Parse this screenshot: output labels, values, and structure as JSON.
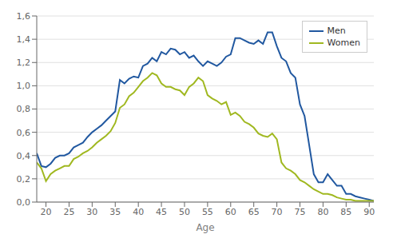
{
  "chart_data": {
    "type": "line",
    "xlabel": "Age",
    "x": [
      18,
      19,
      20,
      21,
      22,
      23,
      24,
      25,
      26,
      27,
      28,
      29,
      30,
      31,
      32,
      33,
      34,
      35,
      36,
      37,
      38,
      39,
      40,
      41,
      42,
      43,
      44,
      45,
      46,
      47,
      48,
      49,
      50,
      51,
      52,
      53,
      54,
      55,
      56,
      57,
      58,
      59,
      60,
      61,
      62,
      63,
      64,
      65,
      66,
      67,
      68,
      69,
      70,
      71,
      72,
      73,
      74,
      75,
      76,
      77,
      78,
      79,
      80,
      81,
      82,
      83,
      84,
      85,
      86,
      87,
      88,
      89,
      90,
      91
    ],
    "series": [
      {
        "name": "Men",
        "color": "#2158a0",
        "values": [
          0.42,
          0.31,
          0.3,
          0.33,
          0.38,
          0.4,
          0.4,
          0.42,
          0.47,
          0.49,
          0.51,
          0.56,
          0.6,
          0.63,
          0.66,
          0.7,
          0.74,
          0.78,
          1.05,
          1.02,
          1.06,
          1.08,
          1.07,
          1.17,
          1.19,
          1.24,
          1.21,
          1.29,
          1.27,
          1.32,
          1.31,
          1.27,
          1.29,
          1.24,
          1.26,
          1.21,
          1.17,
          1.21,
          1.19,
          1.17,
          1.2,
          1.25,
          1.27,
          1.41,
          1.41,
          1.39,
          1.37,
          1.36,
          1.39,
          1.36,
          1.46,
          1.46,
          1.34,
          1.24,
          1.21,
          1.11,
          1.07,
          0.84,
          0.74,
          0.49,
          0.24,
          0.17,
          0.17,
          0.24,
          0.19,
          0.14,
          0.14,
          0.07,
          0.07,
          0.05,
          0.04,
          0.03,
          0.02,
          0.01
        ]
      },
      {
        "name": "Women",
        "color": "#a0b820",
        "values": [
          0.34,
          0.29,
          0.18,
          0.24,
          0.27,
          0.29,
          0.31,
          0.31,
          0.37,
          0.39,
          0.42,
          0.44,
          0.47,
          0.51,
          0.54,
          0.57,
          0.61,
          0.68,
          0.81,
          0.84,
          0.91,
          0.94,
          0.99,
          1.04,
          1.07,
          1.11,
          1.09,
          1.02,
          0.99,
          0.99,
          0.97,
          0.96,
          0.92,
          0.99,
          1.02,
          1.07,
          1.04,
          0.92,
          0.89,
          0.87,
          0.84,
          0.86,
          0.75,
          0.77,
          0.74,
          0.69,
          0.67,
          0.64,
          0.59,
          0.57,
          0.56,
          0.59,
          0.54,
          0.34,
          0.29,
          0.27,
          0.24,
          0.19,
          0.17,
          0.14,
          0.11,
          0.09,
          0.07,
          0.07,
          0.06,
          0.04,
          0.03,
          0.02,
          0.02,
          0.01,
          0.01,
          0.01,
          0.01,
          0.01
        ]
      }
    ],
    "xlim": [
      18,
      91
    ],
    "ylim": [
      0.0,
      1.6
    ],
    "xticks": [
      20,
      25,
      30,
      35,
      40,
      45,
      50,
      55,
      60,
      65,
      70,
      75,
      80,
      85,
      90
    ],
    "yticks": [
      {
        "value": 0.0,
        "label": "0,0"
      },
      {
        "value": 0.2,
        "label": "0,2"
      },
      {
        "value": 0.4,
        "label": "0,4"
      },
      {
        "value": 0.6,
        "label": "0,6"
      },
      {
        "value": 0.8,
        "label": "0,8"
      },
      {
        "value": 1.0,
        "label": "1,0"
      },
      {
        "value": 1.2,
        "label": "1,2"
      },
      {
        "value": 1.4,
        "label": "1,4"
      },
      {
        "value": 1.6,
        "label": "1,6"
      }
    ],
    "grid": "y",
    "legend": "upper right"
  }
}
